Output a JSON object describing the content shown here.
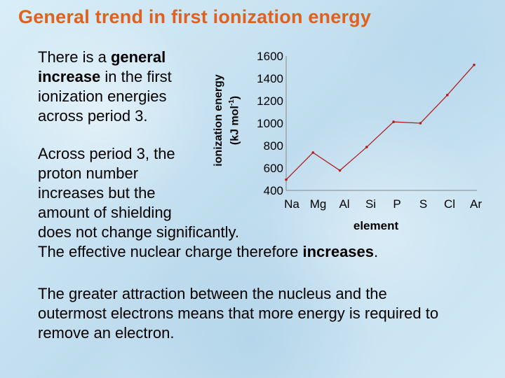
{
  "title": "General trend in first ionization energy",
  "para1": {
    "l1": "There is a ",
    "l1b": "general",
    "l2b": "increase",
    "l2": " in the first",
    "l3": "ionization energies",
    "l4": "across period 3."
  },
  "para2": {
    "l1": "Across period 3, the",
    "l2": "proton number",
    "l3": "increases but the",
    "l4": "amount of shielding",
    "l5": "does not change significantly.",
    "l6a": "The effective nuclear charge therefore ",
    "l6b": "increases",
    "l6c": "."
  },
  "para3": {
    "l1": "The greater attraction between the nucleus and the",
    "l2": "outermost electrons means that more energy is required to",
    "l3": "remove an electron."
  },
  "chart_data": {
    "type": "line",
    "categories": [
      "Na",
      "Mg",
      "Al",
      "Si",
      "P",
      "S",
      "Cl",
      "Ar"
    ],
    "values": [
      496,
      738,
      578,
      787,
      1012,
      1000,
      1251,
      1521
    ],
    "ylabel_main": "ionization energy",
    "ylabel_unit": "(kJ mol",
    "ylabel_sup": "-1",
    "ylabel_close": ")",
    "xlabel": "element",
    "ylim": [
      400,
      1600
    ],
    "yticks": [
      400,
      600,
      800,
      1000,
      1200,
      1400,
      1600
    ],
    "line_color": "#b02020"
  }
}
